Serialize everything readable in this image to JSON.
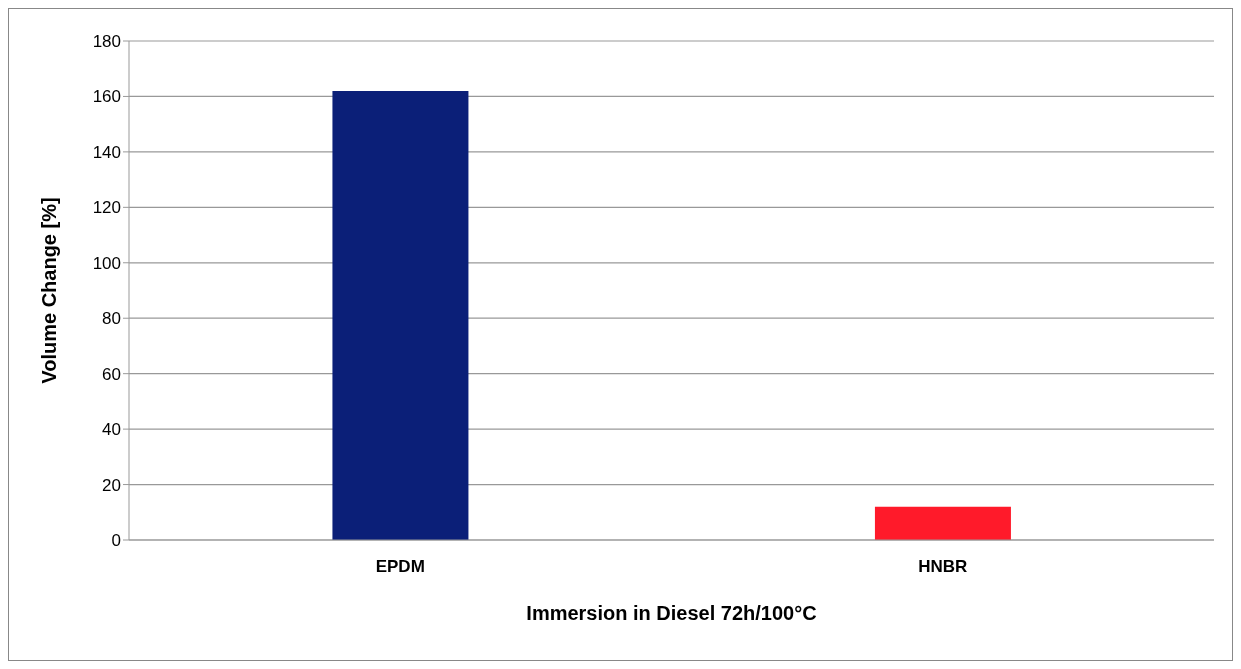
{
  "chart_data": {
    "type": "bar",
    "xlabel": "Immersion in Diesel 72h/100°C",
    "ylabel": "Volume Change [%]",
    "categories": [
      "EPDM",
      "HNBR"
    ],
    "values": [
      162,
      12
    ],
    "colors": [
      "#0b1f78",
      "#ff1a2a"
    ],
    "ylim": [
      0,
      180
    ],
    "yticks": [
      0,
      20,
      40,
      60,
      80,
      100,
      120,
      140,
      160,
      180
    ],
    "grid": "y",
    "legend": false
  }
}
